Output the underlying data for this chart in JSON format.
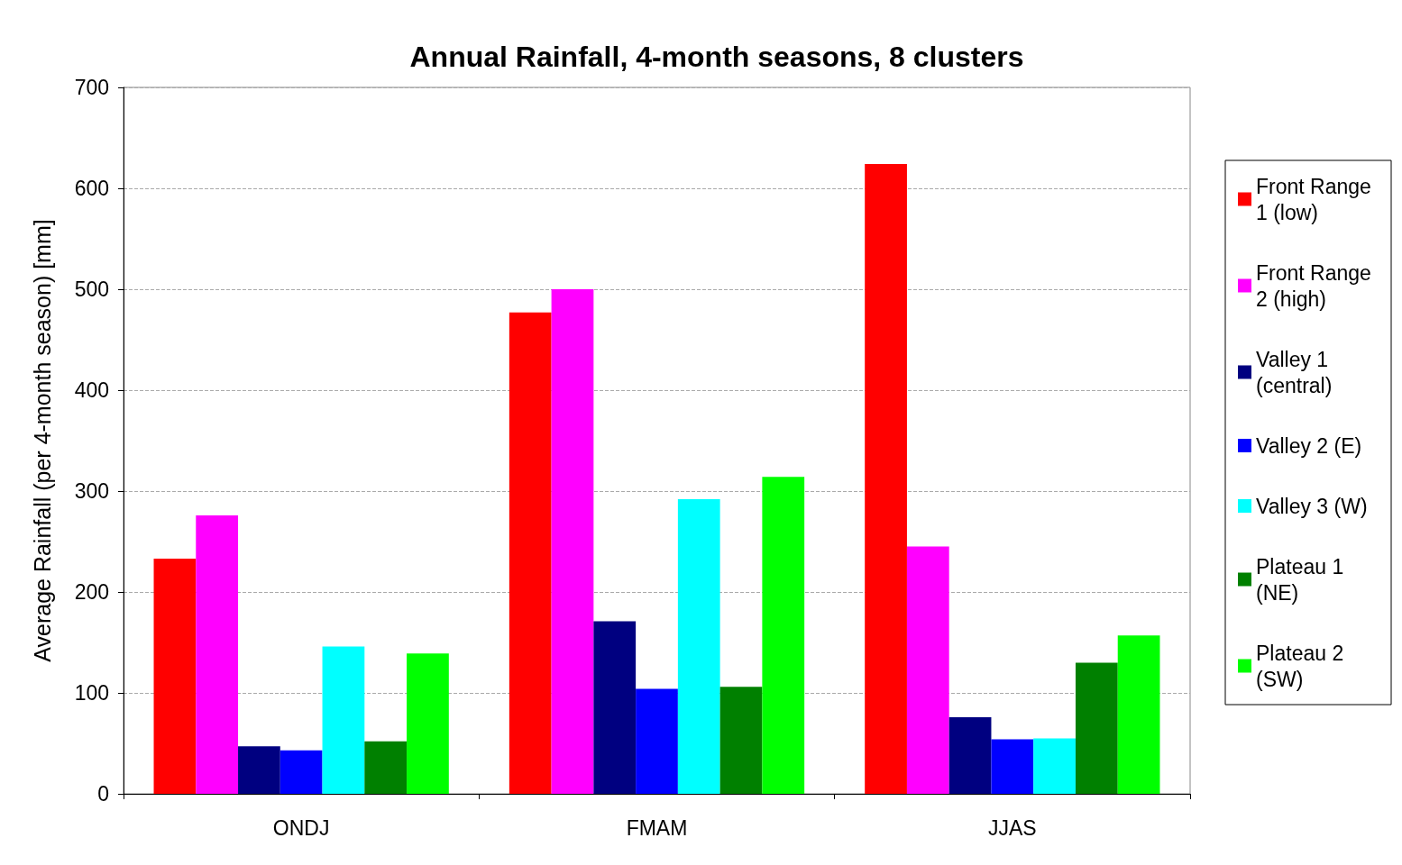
{
  "chart_data": {
    "type": "bar",
    "title": "Annual Rainfall, 4-month seasons, 8 clusters",
    "ylabel": "Average Rainfall (per 4-month season) [mm]",
    "categories": [
      "ONDJ",
      "FMAM",
      "JJAS"
    ],
    "series": [
      {
        "name": "Front Range 1 (low)",
        "color": "#ff0000",
        "values": [
          233,
          477,
          624
        ]
      },
      {
        "name": "Front Range 2 (high)",
        "color": "#ff00ff",
        "values": [
          276,
          500,
          245
        ]
      },
      {
        "name": "Valley 1 (central)",
        "color": "#000080",
        "values": [
          47,
          171,
          76
        ]
      },
      {
        "name": "Valley 2 (E)",
        "color": "#0000ff",
        "values": [
          43,
          104,
          54
        ]
      },
      {
        "name": "Valley 3 (W)",
        "color": "#00ffff",
        "values": [
          146,
          292,
          55
        ]
      },
      {
        "name": "Plateau 1 (NE)",
        "color": "#008000",
        "values": [
          52,
          106,
          130
        ]
      },
      {
        "name": "Plateau 2 (SW)",
        "color": "#00ff00",
        "values": [
          139,
          314,
          157
        ]
      }
    ],
    "ylim": [
      0,
      700
    ],
    "yticks": [
      0,
      100,
      200,
      300,
      400,
      500,
      600,
      700
    ],
    "grid": "y",
    "legend": "right"
  }
}
